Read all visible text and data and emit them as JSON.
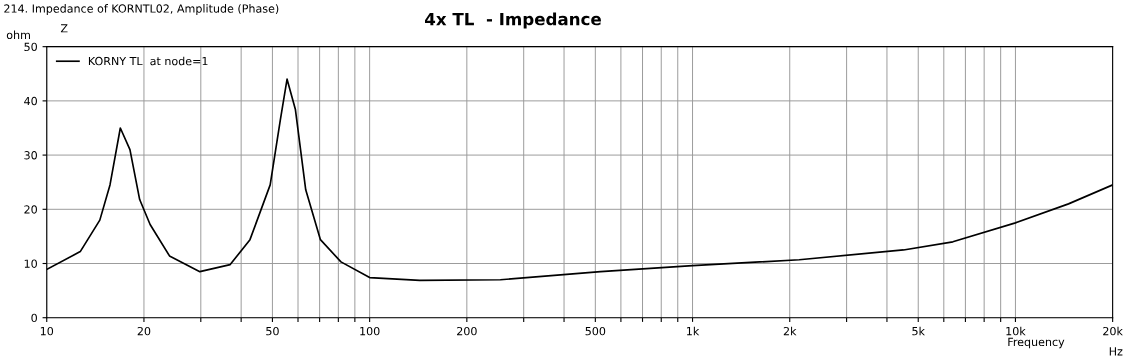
{
  "chart_data": {
    "type": "line",
    "title": "4x TL  - Impedance",
    "xlabel": "Frequency",
    "ylabel": "ohm",
    "annotations": [
      "214. Impedance of KORNTL02, Amplitude (Phase)",
      "Z",
      "Hz"
    ],
    "series": [
      {
        "name": "KORNY TL  at node=1",
        "color": "#000000",
        "x": [
          10,
          12.7,
          14.6,
          15.7,
          16.9,
          18.1,
          19.4,
          20.9,
          24,
          29.8,
          37,
          42.6,
          49.2,
          52.9,
          55.5,
          58.9,
          63.4,
          70.4,
          81.5,
          100,
          143,
          254,
          519,
          1000,
          2140,
          4500,
          6400,
          10000,
          14600,
          20000
        ],
        "values": [
          8.9,
          12.2,
          18,
          24.5,
          35,
          31,
          21.8,
          17.2,
          11.4,
          8.5,
          9.8,
          14.4,
          24.5,
          36.5,
          44,
          38.4,
          23.6,
          14.4,
          10.3,
          7.4,
          6.9,
          7,
          8.5,
          9.6,
          10.7,
          12.5,
          14,
          17.5,
          21,
          24.5
        ]
      }
    ],
    "log": "x",
    "xlim": [
      10,
      20000
    ],
    "ylim": [
      0,
      50
    ],
    "xticks": [
      10,
      20,
      {
        "value": 30,
        "label": null
      },
      {
        "value": 40,
        "label": null
      },
      50,
      {
        "value": 60,
        "label": null
      },
      {
        "value": 70,
        "label": null
      },
      {
        "value": 80,
        "label": null
      },
      {
        "value": 90,
        "label": null
      },
      100,
      200,
      {
        "value": 300,
        "label": null
      },
      {
        "value": 400,
        "label": null
      },
      500,
      {
        "value": 600,
        "label": null
      },
      {
        "value": 700,
        "label": null
      },
      {
        "value": 800,
        "label": null
      },
      {
        "value": 900,
        "label": null
      },
      {
        "value": 1000,
        "label": "1k"
      },
      {
        "value": 2000,
        "label": "2k"
      },
      {
        "value": 3000,
        "label": null
      },
      {
        "value": 4000,
        "label": null
      },
      {
        "value": 5000,
        "label": "5k"
      },
      {
        "value": 6000,
        "label": null
      },
      {
        "value": 7000,
        "label": null
      },
      {
        "value": 8000,
        "label": null
      },
      {
        "value": 9000,
        "label": null
      },
      {
        "value": 10000,
        "label": "10k"
      },
      {
        "value": 20000,
        "label": "20k"
      }
    ],
    "yticks": [
      0,
      10,
      20,
      30,
      40,
      50
    ],
    "grid": true,
    "legend": "top left",
    "line_style": "solid",
    "marker": "none"
  }
}
